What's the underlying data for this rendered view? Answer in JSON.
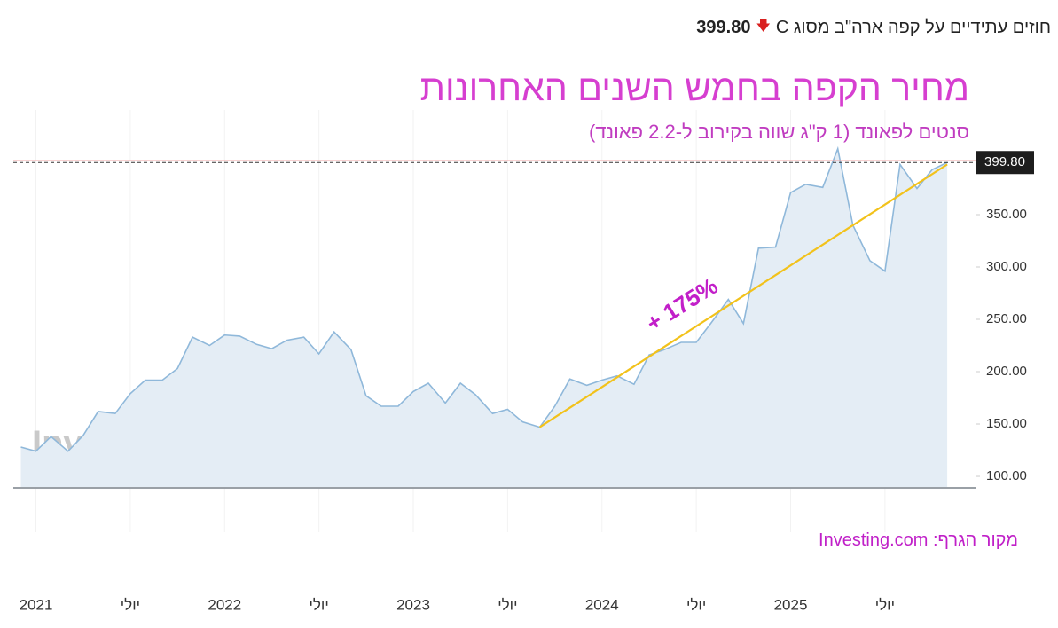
{
  "header": {
    "instrument": "חוזים עתידיים על קפה ארה\"ב מסוג C",
    "price": {
      "value": 399.8,
      "label": "399.80"
    }
  },
  "chart_data": {
    "type": "area",
    "title": "מחיר הקפה בחמש השנים האחרונות",
    "subtitle": "סנטים לפאונד (1 ק\"ג שווה בקירוב ל-2.2 פאונד)",
    "source": "מקור הגרף: Investing.com",
    "watermark": [
      "Investing",
      ".com"
    ],
    "annotation": "+ 175%",
    "x": [
      2020.92,
      2021.0,
      2021.08,
      2021.17,
      2021.25,
      2021.33,
      2021.42,
      2021.5,
      2021.58,
      2021.67,
      2021.75,
      2021.83,
      2021.92,
      2022.0,
      2022.08,
      2022.17,
      2022.25,
      2022.33,
      2022.42,
      2022.5,
      2022.58,
      2022.67,
      2022.75,
      2022.83,
      2022.92,
      2023.0,
      2023.08,
      2023.17,
      2023.25,
      2023.33,
      2023.42,
      2023.5,
      2023.58,
      2023.67,
      2023.75,
      2023.83,
      2023.92,
      2024.0,
      2024.08,
      2024.17,
      2024.25,
      2024.33,
      2024.42,
      2024.5,
      2024.58,
      2024.67,
      2024.75,
      2024.83,
      2024.92,
      2025.0,
      2025.08,
      2025.17,
      2025.25,
      2025.33,
      2025.42,
      2025.5,
      2025.58,
      2025.67,
      2025.75,
      2025.83
    ],
    "values": [
      128,
      124,
      138,
      124,
      139,
      162,
      160,
      179,
      192,
      192,
      203,
      233,
      225,
      235,
      234,
      226,
      222,
      230,
      233,
      217,
      238,
      221,
      177,
      167,
      167,
      181,
      189,
      170,
      189,
      178,
      160,
      164,
      152,
      147,
      167,
      193,
      187,
      192,
      196,
      188,
      216,
      221,
      228,
      228,
      247,
      269,
      246,
      318,
      319,
      371,
      379,
      376,
      413,
      340,
      306,
      296,
      398,
      375,
      393,
      399.8
    ],
    "color": "#8fb8da",
    "fill_color": "#e4edf5",
    "trend": {
      "x": [
        2023.67,
        2025.83
      ],
      "y": [
        147,
        398
      ],
      "color": "#f2c21b"
    },
    "last_value": {
      "value": 399.8,
      "label": "399.80"
    },
    "reference_line": {
      "value": 401.5,
      "color": "#f2a5a5"
    },
    "xlim": [
      2020.88,
      2025.98
    ],
    "xticks": [
      {
        "value": 2021,
        "label": "2021"
      },
      {
        "value": 2021.5,
        "label": "יולי"
      },
      {
        "value": 2022,
        "label": "2022"
      },
      {
        "value": 2022.5,
        "label": "יולי"
      },
      {
        "value": 2023,
        "label": "2023"
      },
      {
        "value": 2023.5,
        "label": "יולי"
      },
      {
        "value": 2024,
        "label": "2024"
      },
      {
        "value": 2024.5,
        "label": "יולי"
      },
      {
        "value": 2025,
        "label": "2025"
      },
      {
        "value": 2025.5,
        "label": "יולי"
      }
    ],
    "ylim": [
      89,
      450
    ],
    "yticks": [
      {
        "value": 100,
        "label": "100.00"
      },
      {
        "value": 150,
        "label": "150.00"
      },
      {
        "value": 200,
        "label": "200.00"
      },
      {
        "value": 250,
        "label": "250.00"
      },
      {
        "value": 300,
        "label": "300.00"
      },
      {
        "value": 350,
        "label": "350.00"
      }
    ]
  }
}
